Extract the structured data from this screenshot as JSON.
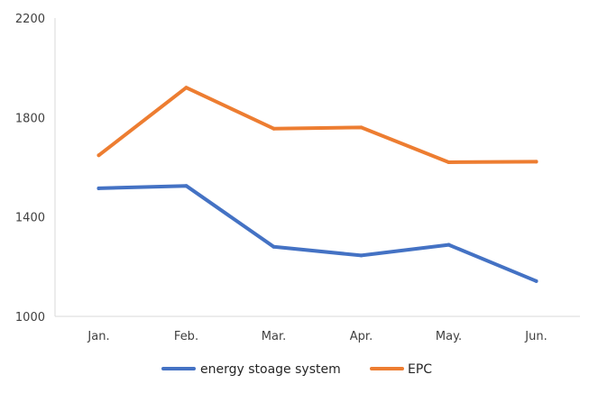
{
  "chart_data": {
    "type": "line",
    "title": "",
    "xlabel": "",
    "ylabel": "",
    "categories": [
      "Jan.",
      "Feb.",
      "Mar.",
      "Apr.",
      "May.",
      "Jun."
    ],
    "ylim": [
      1000,
      2200
    ],
    "yticks": [
      "1000",
      "1400",
      "1800",
      "2200"
    ],
    "grid": false,
    "legend_position": "bottom",
    "series": [
      {
        "name": "energy stoage system",
        "color": "#4472C4",
        "values": [
          1515,
          1525,
          1280,
          1245,
          1288,
          1142
        ]
      },
      {
        "name": "EPC",
        "color": "#ED7D31",
        "values": [
          1648,
          1920,
          1755,
          1760,
          1620,
          1622
        ]
      }
    ]
  }
}
